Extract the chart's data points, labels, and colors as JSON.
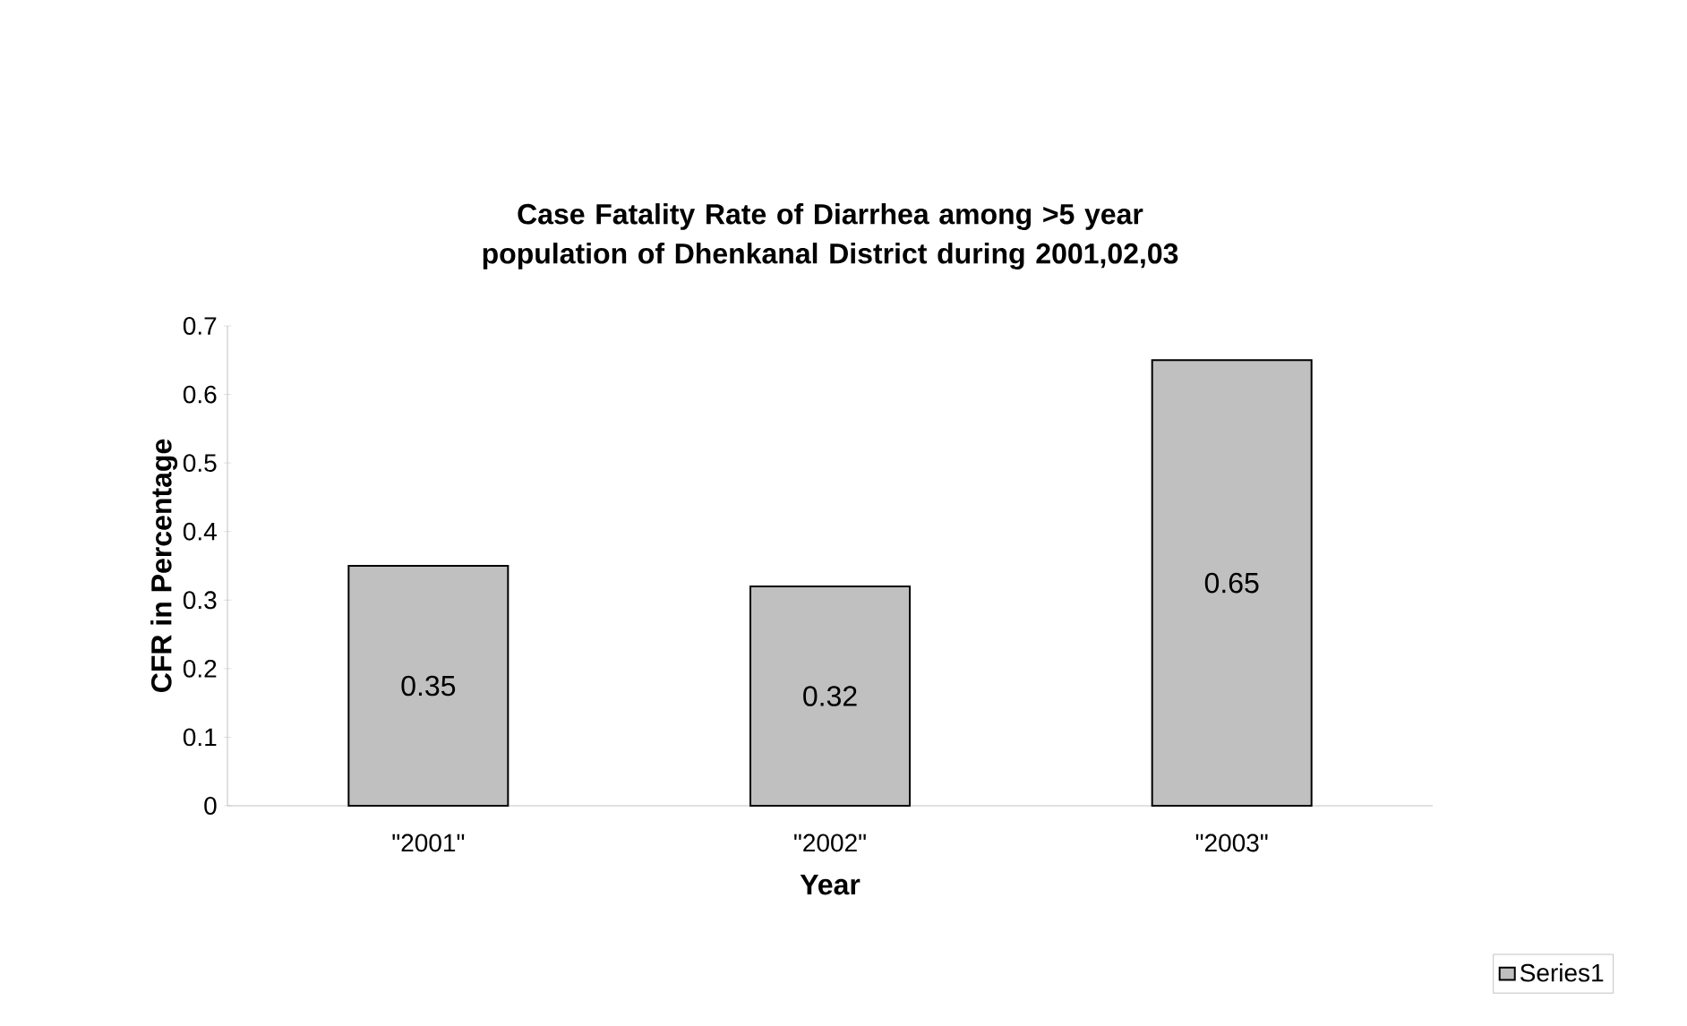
{
  "chart_data": {
    "type": "bar",
    "title": "Case Fatality Rate of Diarrhea among >5 year population of Dhenkanal District during 2001,02,03",
    "xlabel": "Year",
    "ylabel": "CFR in Percentage",
    "categories": [
      "\"2001\"",
      "\"2002\"",
      "\"2003\""
    ],
    "series": [
      {
        "name": "Series1",
        "color": "#c0c0c0",
        "values": [
          0.35,
          0.32,
          0.65
        ]
      }
    ],
    "ylim": [
      0,
      0.7
    ],
    "yticks": [
      0,
      0.1,
      0.2,
      0.3,
      0.4,
      0.5,
      0.6,
      0.7
    ],
    "data_labels": true,
    "grid": false,
    "legend": "right"
  }
}
